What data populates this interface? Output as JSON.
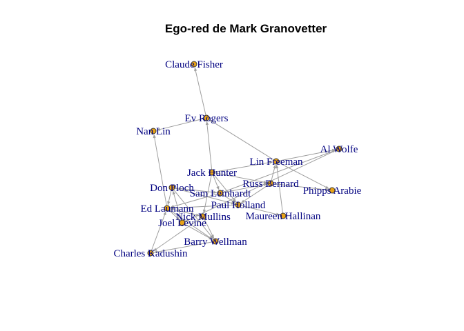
{
  "title": "Ego-red de Mark Granovetter",
  "colors": {
    "node_fill": "#e8a317",
    "node_stroke": "#333333",
    "edge": "#9e9e9e",
    "label": "#000080"
  },
  "nodes": [
    {
      "id": "claude_fisher",
      "label": "Claude Fisher"
    },
    {
      "id": "ev_rogers",
      "label": "Ev Rogers"
    },
    {
      "id": "nan_lin",
      "label": "Nan Lin"
    },
    {
      "id": "al_wolfe",
      "label": "Al Wolfe"
    },
    {
      "id": "lin_freeman",
      "label": "Lin Freeman"
    },
    {
      "id": "jack_hunter",
      "label": "Jack Hunter"
    },
    {
      "id": "russ_bernard",
      "label": "Russ Bernard"
    },
    {
      "id": "don_ploch",
      "label": "Don Ploch"
    },
    {
      "id": "phipps_arabie",
      "label": "Phipps Arabie"
    },
    {
      "id": "sam_leinhardt",
      "label": "Sam Leinhardt"
    },
    {
      "id": "paul_holland",
      "label": "Paul Holland"
    },
    {
      "id": "ed_laumann",
      "label": "Ed Laumann"
    },
    {
      "id": "nick_mullins",
      "label": "Nick Mullins"
    },
    {
      "id": "maureen_hallinan",
      "label": "Maureen Hallinan"
    },
    {
      "id": "joel_levine",
      "label": "Joel Levine"
    },
    {
      "id": "barry_wellman",
      "label": "Barry Wellman"
    },
    {
      "id": "charles_kadushin",
      "label": "Charles Kadushin"
    }
  ],
  "edges": [
    {
      "from": "ev_rogers",
      "to": "claude_fisher"
    },
    {
      "from": "ev_rogers",
      "to": "nan_lin"
    },
    {
      "from": "jack_hunter",
      "to": "ev_rogers"
    },
    {
      "from": "lin_freeman",
      "to": "ev_rogers"
    },
    {
      "from": "ed_laumann",
      "to": "nan_lin"
    },
    {
      "from": "lin_freeman",
      "to": "al_wolfe"
    },
    {
      "from": "jack_hunter",
      "to": "lin_freeman"
    },
    {
      "from": "russ_bernard",
      "to": "lin_freeman"
    },
    {
      "from": "lin_freeman",
      "to": "phipps_arabie"
    },
    {
      "from": "maureen_hallinan",
      "to": "lin_freeman"
    },
    {
      "from": "jack_hunter",
      "to": "russ_bernard"
    },
    {
      "from": "jack_hunter",
      "to": "sam_leinhardt"
    },
    {
      "from": "jack_hunter",
      "to": "paul_holland"
    },
    {
      "from": "jack_hunter",
      "to": "nick_mullins"
    },
    {
      "from": "don_ploch",
      "to": "sam_leinhardt"
    },
    {
      "from": "don_ploch",
      "to": "paul_holland"
    },
    {
      "from": "don_ploch",
      "to": "ed_laumann"
    },
    {
      "from": "don_ploch",
      "to": "barry_wellman"
    },
    {
      "from": "joel_levine",
      "to": "don_ploch"
    },
    {
      "from": "sam_leinhardt",
      "to": "paul_holland"
    },
    {
      "from": "sam_leinhardt",
      "to": "russ_bernard"
    },
    {
      "from": "sam_leinhardt",
      "to": "al_wolfe"
    },
    {
      "from": "sam_leinhardt",
      "to": "ed_laumann"
    },
    {
      "from": "paul_holland",
      "to": "maureen_hallinan"
    },
    {
      "from": "paul_holland",
      "to": "ed_laumann"
    },
    {
      "from": "russ_bernard",
      "to": "paul_holland"
    },
    {
      "from": "russ_bernard",
      "to": "phipps_arabie"
    },
    {
      "from": "ed_laumann",
      "to": "nick_mullins"
    },
    {
      "from": "ed_laumann",
      "to": "joel_levine"
    },
    {
      "from": "ed_laumann",
      "to": "barry_wellman"
    },
    {
      "from": "nick_mullins",
      "to": "barry_wellman"
    },
    {
      "from": "nick_mullins",
      "to": "charles_kadushin"
    },
    {
      "from": "barry_wellman",
      "to": "charles_kadushin"
    },
    {
      "from": "joel_levine",
      "to": "barry_wellman"
    },
    {
      "from": "charles_kadushin",
      "to": "ed_laumann"
    },
    {
      "from": "al_wolfe",
      "to": "joel_levine"
    }
  ]
}
